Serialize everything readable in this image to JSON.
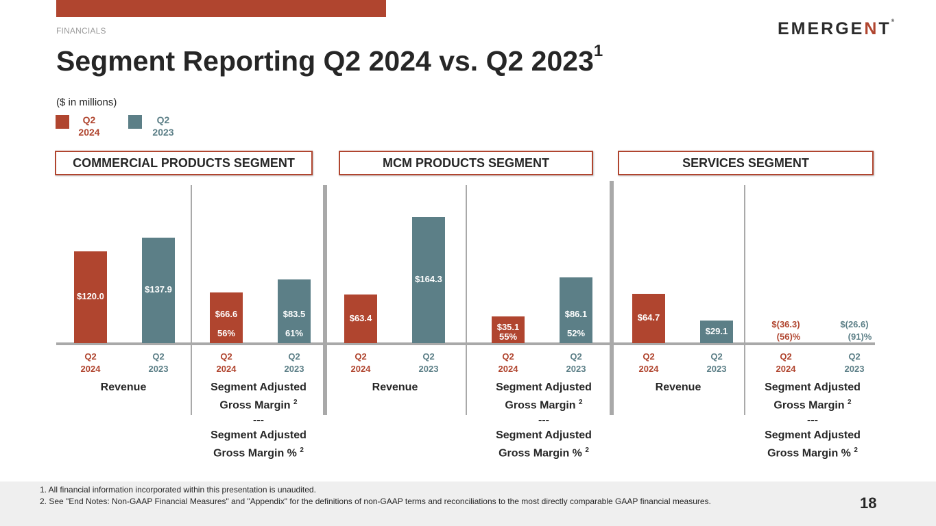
{
  "header": {
    "section": "FINANCIALS",
    "title": "Segment Reporting Q2 2024 vs. Q2 2023",
    "title_footnote": "1",
    "logo": {
      "pre": "EMERGE",
      "accent": "N",
      "post": "T",
      "mark": "®"
    },
    "units": "($ in millions)"
  },
  "colors": {
    "q2_2024": "#B0452F",
    "q2_2023": "#5C7F87",
    "accent": "#B0452F",
    "divider": "#a9a9a9"
  },
  "legend": [
    {
      "line1": "Q2",
      "line2": "2024",
      "color_key": "q2_2024"
    },
    {
      "line1": "Q2",
      "line2": "2023",
      "color_key": "q2_2023"
    }
  ],
  "chart_data": {
    "type": "bar",
    "title": "Segment Reporting Q2 2024 vs. Q2 2023",
    "ylabel": "$ in millions",
    "ylim": [
      0,
      170
    ],
    "grid": false,
    "legend": "top-left",
    "series_names": [
      "Q2 2024",
      "Q2 2023"
    ],
    "segments": [
      {
        "name": "COMMERCIAL PRODUCTS SEGMENT",
        "groups": [
          {
            "category": "Revenue",
            "footnote": "",
            "bars": [
              {
                "period": "Q2 2024",
                "value": 120.0,
                "label": "$120.0",
                "pct": null
              },
              {
                "period": "Q2 2023",
                "value": 137.9,
                "label": "$137.9",
                "pct": null
              }
            ]
          },
          {
            "category": "Segment Adjusted Gross Margin / Segment Adjusted Gross Margin %",
            "footnote": "2",
            "bars": [
              {
                "period": "Q2 2024",
                "value": 66.6,
                "label": "$66.6",
                "pct": "56%"
              },
              {
                "period": "Q2 2023",
                "value": 83.5,
                "label": "$83.5",
                "pct": "61%"
              }
            ]
          }
        ]
      },
      {
        "name": "MCM PRODUCTS SEGMENT",
        "groups": [
          {
            "category": "Revenue",
            "footnote": "",
            "bars": [
              {
                "period": "Q2 2024",
                "value": 63.4,
                "label": "$63.4",
                "pct": null
              },
              {
                "period": "Q2 2023",
                "value": 164.3,
                "label": "$164.3",
                "pct": null
              }
            ]
          },
          {
            "category": "Segment Adjusted Gross Margin / Segment Adjusted Gross Margin %",
            "footnote": "2",
            "bars": [
              {
                "period": "Q2 2024",
                "value": 35.1,
                "label": "$35.1",
                "pct": "55%"
              },
              {
                "period": "Q2 2023",
                "value": 86.1,
                "label": "$86.1",
                "pct": "52%"
              }
            ]
          }
        ]
      },
      {
        "name": "SERVICES SEGMENT",
        "groups": [
          {
            "category": "Revenue",
            "footnote": "",
            "bars": [
              {
                "period": "Q2 2024",
                "value": 64.7,
                "label": "$64.7",
                "pct": null
              },
              {
                "period": "Q2 2023",
                "value": 29.1,
                "label": "$29.1",
                "pct": null
              }
            ]
          },
          {
            "category": "Segment Adjusted Gross Margin / Segment Adjusted Gross Margin %",
            "footnote": "2",
            "bars": [
              {
                "period": "Q2 2024",
                "value": -36.3,
                "label": "$(36.3)",
                "pct": "(56)%"
              },
              {
                "period": "Q2 2023",
                "value": -26.6,
                "label": "$(26.6)",
                "pct": "(91)%"
              }
            ]
          }
        ]
      }
    ]
  },
  "labels": {
    "tick_q": "Q2",
    "tick_2024": "2024",
    "tick_2023": "2023",
    "revenue": "Revenue",
    "gm_line1": "Segment Adjusted",
    "gm_line2": "Gross Margin",
    "separator": "---",
    "gmp_line1": "Segment Adjusted",
    "gmp_line2": "Gross Margin %",
    "fn": "2"
  },
  "footer": {
    "notes": [
      "1. All financial information incorporated within this presentation is unaudited.",
      "2. See \"End Notes: Non-GAAP Financial Measures\" and \"Appendix\" for the definitions of non-GAAP terms and reconciliations to the most directly comparable GAAP financial measures."
    ],
    "page_number": "18"
  }
}
